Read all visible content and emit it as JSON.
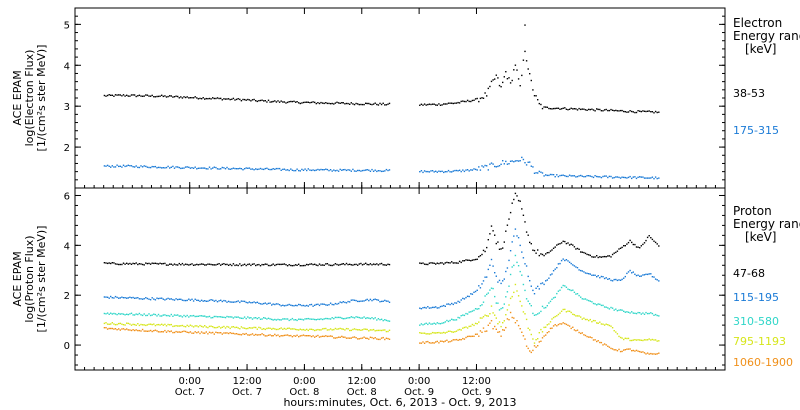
{
  "chart_data": [
    {
      "type": "scatter",
      "title": "",
      "ylabel_lines": [
        "ACE EPAM",
        "log(Electron Flux)",
        "[1/(cm²s ster MeV)]"
      ],
      "ylim": [
        1.0,
        5.4
      ],
      "yticks": [
        2,
        3,
        4,
        5
      ],
      "legend_title_lines": [
        "Electron",
        "Energy ranges",
        "[keV]"
      ],
      "series": [
        {
          "name": "38-53",
          "color": "#000000",
          "points": [
            [
              -18,
              3.27
            ],
            [
              -14,
              3.28
            ],
            [
              -10,
              3.27
            ],
            [
              -6,
              3.26
            ],
            [
              -2,
              3.24
            ],
            [
              2,
              3.22
            ],
            [
              6,
              3.2
            ],
            [
              10,
              3.18
            ],
            [
              14,
              3.15
            ],
            [
              18,
              3.13
            ],
            [
              22,
              3.11
            ],
            [
              26,
              3.1
            ],
            [
              30,
              3.09
            ],
            [
              34,
              3.08
            ],
            [
              38,
              3.07
            ],
            [
              42,
              3.06
            ],
            [
              48,
              3.05
            ],
            [
              52,
              3.06
            ],
            [
              56,
              3.1
            ],
            [
              60,
              3.18
            ],
            [
              62,
              3.3
            ],
            [
              63,
              3.55
            ],
            [
              64,
              3.75
            ],
            [
              65,
              3.45
            ],
            [
              66,
              3.85
            ],
            [
              67,
              3.55
            ],
            [
              68,
              4.05
            ],
            [
              69,
              3.45
            ],
            [
              70,
              4.4
            ],
            [
              71,
              3.75
            ],
            [
              72,
              3.3
            ],
            [
              73,
              3.05
            ],
            [
              74,
              2.98
            ],
            [
              78,
              2.96
            ],
            [
              82,
              2.94
            ],
            [
              86,
              2.92
            ],
            [
              90,
              2.9
            ],
            [
              94,
              2.88
            ],
            [
              98,
              2.87
            ]
          ],
          "outlier": [
            70,
            5.0
          ]
        },
        {
          "name": "175-315",
          "color": "#1a7ad6",
          "points": [
            [
              -18,
              1.55
            ],
            [
              -14,
              1.55
            ],
            [
              -10,
              1.54
            ],
            [
              -6,
              1.53
            ],
            [
              -2,
              1.52
            ],
            [
              2,
              1.51
            ],
            [
              6,
              1.5
            ],
            [
              10,
              1.49
            ],
            [
              14,
              1.48
            ],
            [
              18,
              1.47
            ],
            [
              22,
              1.46
            ],
            [
              26,
              1.46
            ],
            [
              30,
              1.45
            ],
            [
              34,
              1.45
            ],
            [
              38,
              1.45
            ],
            [
              42,
              1.44
            ],
            [
              48,
              1.42
            ],
            [
              52,
              1.42
            ],
            [
              56,
              1.43
            ],
            [
              60,
              1.47
            ],
            [
              63,
              1.55
            ],
            [
              65,
              1.62
            ],
            [
              67,
              1.65
            ],
            [
              69,
              1.72
            ],
            [
              71,
              1.6
            ],
            [
              72,
              1.45
            ],
            [
              73,
              1.35
            ],
            [
              74,
              1.33
            ],
            [
              78,
              1.31
            ],
            [
              82,
              1.3
            ],
            [
              86,
              1.29
            ],
            [
              90,
              1.28
            ],
            [
              94,
              1.27
            ],
            [
              98,
              1.26
            ]
          ]
        }
      ]
    },
    {
      "type": "scatter",
      "title": "",
      "ylabel_lines": [
        "ACE EPAM",
        "log(Proton Flux)",
        "[1/(cm²s ster MeV)]"
      ],
      "ylim": [
        -1.0,
        6.3
      ],
      "yticks": [
        0,
        2,
        4,
        6
      ],
      "legend_title_lines": [
        "Proton",
        "Energy ranges",
        "[keV]"
      ],
      "series": [
        {
          "name": "47-68",
          "color": "#000000",
          "points": [
            [
              -18,
              3.3
            ],
            [
              -10,
              3.28
            ],
            [
              -2,
              3.27
            ],
            [
              6,
              3.26
            ],
            [
              14,
              3.25
            ],
            [
              22,
              3.25
            ],
            [
              30,
              3.26
            ],
            [
              38,
              3.27
            ],
            [
              42,
              3.27
            ],
            [
              48,
              3.28
            ],
            [
              52,
              3.3
            ],
            [
              56,
              3.35
            ],
            [
              60,
              3.5
            ],
            [
              62,
              3.9
            ],
            [
              63,
              4.9
            ],
            [
              64,
              4.2
            ],
            [
              65,
              3.8
            ],
            [
              66,
              4.5
            ],
            [
              67,
              5.4
            ],
            [
              68,
              6.0
            ],
            [
              69,
              5.7
            ],
            [
              70,
              4.9
            ],
            [
              71,
              4.2
            ],
            [
              72,
              3.8
            ],
            [
              74,
              3.6
            ],
            [
              76,
              3.9
            ],
            [
              78,
              4.2
            ],
            [
              80,
              4.0
            ],
            [
              82,
              3.75
            ],
            [
              84,
              3.6
            ],
            [
              86,
              3.55
            ],
            [
              88,
              3.6
            ],
            [
              90,
              3.9
            ],
            [
              92,
              4.2
            ],
            [
              94,
              3.9
            ],
            [
              96,
              4.4
            ],
            [
              98,
              4.0
            ]
          ]
        },
        {
          "name": "115-195",
          "color": "#1a7ad6",
          "points": [
            [
              -18,
              1.95
            ],
            [
              -10,
              1.9
            ],
            [
              -2,
              1.85
            ],
            [
              6,
              1.8
            ],
            [
              14,
              1.72
            ],
            [
              20,
              1.62
            ],
            [
              26,
              1.62
            ],
            [
              30,
              1.68
            ],
            [
              34,
              1.8
            ],
            [
              38,
              1.85
            ],
            [
              42,
              1.75
            ],
            [
              48,
              1.52
            ],
            [
              52,
              1.55
            ],
            [
              56,
              1.75
            ],
            [
              60,
              2.2
            ],
            [
              62,
              2.8
            ],
            [
              63,
              3.4
            ],
            [
              64,
              2.8
            ],
            [
              65,
              2.4
            ],
            [
              66,
              2.9
            ],
            [
              67,
              3.8
            ],
            [
              68,
              4.6
            ],
            [
              69,
              4.1
            ],
            [
              70,
              3.4
            ],
            [
              71,
              2.6
            ],
            [
              72,
              2.2
            ],
            [
              74,
              2.5
            ],
            [
              76,
              3.0
            ],
            [
              78,
              3.5
            ],
            [
              80,
              3.25
            ],
            [
              82,
              3.0
            ],
            [
              84,
              2.85
            ],
            [
              86,
              2.75
            ],
            [
              88,
              2.65
            ],
            [
              90,
              2.6
            ],
            [
              92,
              3.0
            ],
            [
              94,
              2.75
            ],
            [
              96,
              2.9
            ],
            [
              98,
              2.6
            ]
          ]
        },
        {
          "name": "310-580",
          "color": "#2fd6c8",
          "points": [
            [
              -18,
              1.3
            ],
            [
              -10,
              1.25
            ],
            [
              -2,
              1.2
            ],
            [
              6,
              1.15
            ],
            [
              14,
              1.1
            ],
            [
              20,
              1.05
            ],
            [
              26,
              1.05
            ],
            [
              30,
              1.1
            ],
            [
              34,
              1.15
            ],
            [
              38,
              1.1
            ],
            [
              42,
              1.0
            ],
            [
              48,
              0.85
            ],
            [
              52,
              0.9
            ],
            [
              56,
              1.1
            ],
            [
              60,
              1.5
            ],
            [
              62,
              2.0
            ],
            [
              63,
              2.4
            ],
            [
              64,
              1.8
            ],
            [
              65,
              1.4
            ],
            [
              66,
              1.9
            ],
            [
              67,
              2.8
            ],
            [
              68,
              3.6
            ],
            [
              69,
              3.0
            ],
            [
              70,
              2.2
            ],
            [
              71,
              1.6
            ],
            [
              72,
              1.3
            ],
            [
              74,
              1.5
            ],
            [
              76,
              1.9
            ],
            [
              78,
              2.4
            ],
            [
              80,
              2.2
            ],
            [
              82,
              1.9
            ],
            [
              84,
              1.75
            ],
            [
              86,
              1.6
            ],
            [
              88,
              1.5
            ],
            [
              90,
              1.4
            ],
            [
              92,
              1.35
            ],
            [
              94,
              1.3
            ],
            [
              96,
              1.3
            ],
            [
              98,
              1.2
            ]
          ]
        },
        {
          "name": "795-1193",
          "color": "#d6e61a",
          "points": [
            [
              -18,
              0.9
            ],
            [
              -10,
              0.85
            ],
            [
              -2,
              0.8
            ],
            [
              6,
              0.75
            ],
            [
              14,
              0.7
            ],
            [
              20,
              0.68
            ],
            [
              26,
              0.65
            ],
            [
              30,
              0.66
            ],
            [
              34,
              0.65
            ],
            [
              38,
              0.62
            ],
            [
              42,
              0.6
            ],
            [
              48,
              0.5
            ],
            [
              52,
              0.5
            ],
            [
              56,
              0.6
            ],
            [
              60,
              0.9
            ],
            [
              62,
              1.2
            ],
            [
              63,
              1.5
            ],
            [
              64,
              1.1
            ],
            [
              65,
              0.8
            ],
            [
              66,
              1.2
            ],
            [
              67,
              1.9
            ],
            [
              68,
              2.4
            ],
            [
              69,
              1.8
            ],
            [
              70,
              1.2
            ],
            [
              71,
              0.6
            ],
            [
              72,
              0.2
            ],
            [
              74,
              0.7
            ],
            [
              76,
              1.1
            ],
            [
              78,
              1.45
            ],
            [
              80,
              1.3
            ],
            [
              82,
              1.1
            ],
            [
              84,
              1.0
            ],
            [
              86,
              0.9
            ],
            [
              88,
              0.8
            ],
            [
              90,
              0.3
            ],
            [
              92,
              0.25
            ],
            [
              94,
              0.2
            ],
            [
              96,
              0.25
            ],
            [
              98,
              0.2
            ]
          ]
        },
        {
          "name": "1060-1900",
          "color": "#f0901a",
          "points": [
            [
              -18,
              0.7
            ],
            [
              -10,
              0.62
            ],
            [
              -2,
              0.55
            ],
            [
              6,
              0.5
            ],
            [
              14,
              0.45
            ],
            [
              20,
              0.4
            ],
            [
              26,
              0.38
            ],
            [
              30,
              0.35
            ],
            [
              34,
              0.32
            ],
            [
              38,
              0.3
            ],
            [
              42,
              0.28
            ],
            [
              48,
              0.12
            ],
            [
              52,
              0.15
            ],
            [
              56,
              0.22
            ],
            [
              60,
              0.45
            ],
            [
              62,
              0.7
            ],
            [
              63,
              0.9
            ],
            [
              64,
              0.6
            ],
            [
              65,
              0.4
            ],
            [
              66,
              0.8
            ],
            [
              67,
              1.3
            ],
            [
              68,
              1.0
            ],
            [
              69,
              0.7
            ],
            [
              70,
              0.2
            ],
            [
              71,
              -0.3
            ],
            [
              72,
              -0.1
            ],
            [
              74,
              0.4
            ],
            [
              76,
              0.8
            ],
            [
              78,
              0.9
            ],
            [
              80,
              0.7
            ],
            [
              82,
              0.5
            ],
            [
              84,
              0.3
            ],
            [
              86,
              0.1
            ],
            [
              88,
              -0.1
            ],
            [
              90,
              -0.2
            ],
            [
              92,
              -0.15
            ],
            [
              94,
              -0.25
            ],
            [
              96,
              -0.35
            ],
            [
              98,
              -0.3
            ]
          ]
        }
      ]
    }
  ],
  "x_axis": {
    "range": [
      -24,
      112
    ],
    "data_gap": [
      43,
      47
    ],
    "ticks": [
      {
        "pos": 0,
        "line1": "0:00",
        "line2": "Oct. 7"
      },
      {
        "pos": 12,
        "line1": "12:00",
        "line2": "Oct. 7"
      },
      {
        "pos": 24,
        "line1": "0:00",
        "line2": "Oct. 8"
      },
      {
        "pos": 36,
        "line1": "12:00",
        "line2": "Oct. 8"
      },
      {
        "pos": 48,
        "line1": "0:00",
        "line2": "Oct. 9"
      },
      {
        "pos": 60,
        "line1": "12:00",
        "line2": "Oct. 9"
      }
    ],
    "label": "hours:minutes, Oct.  6, 2013 - Oct.  9, 2013"
  }
}
